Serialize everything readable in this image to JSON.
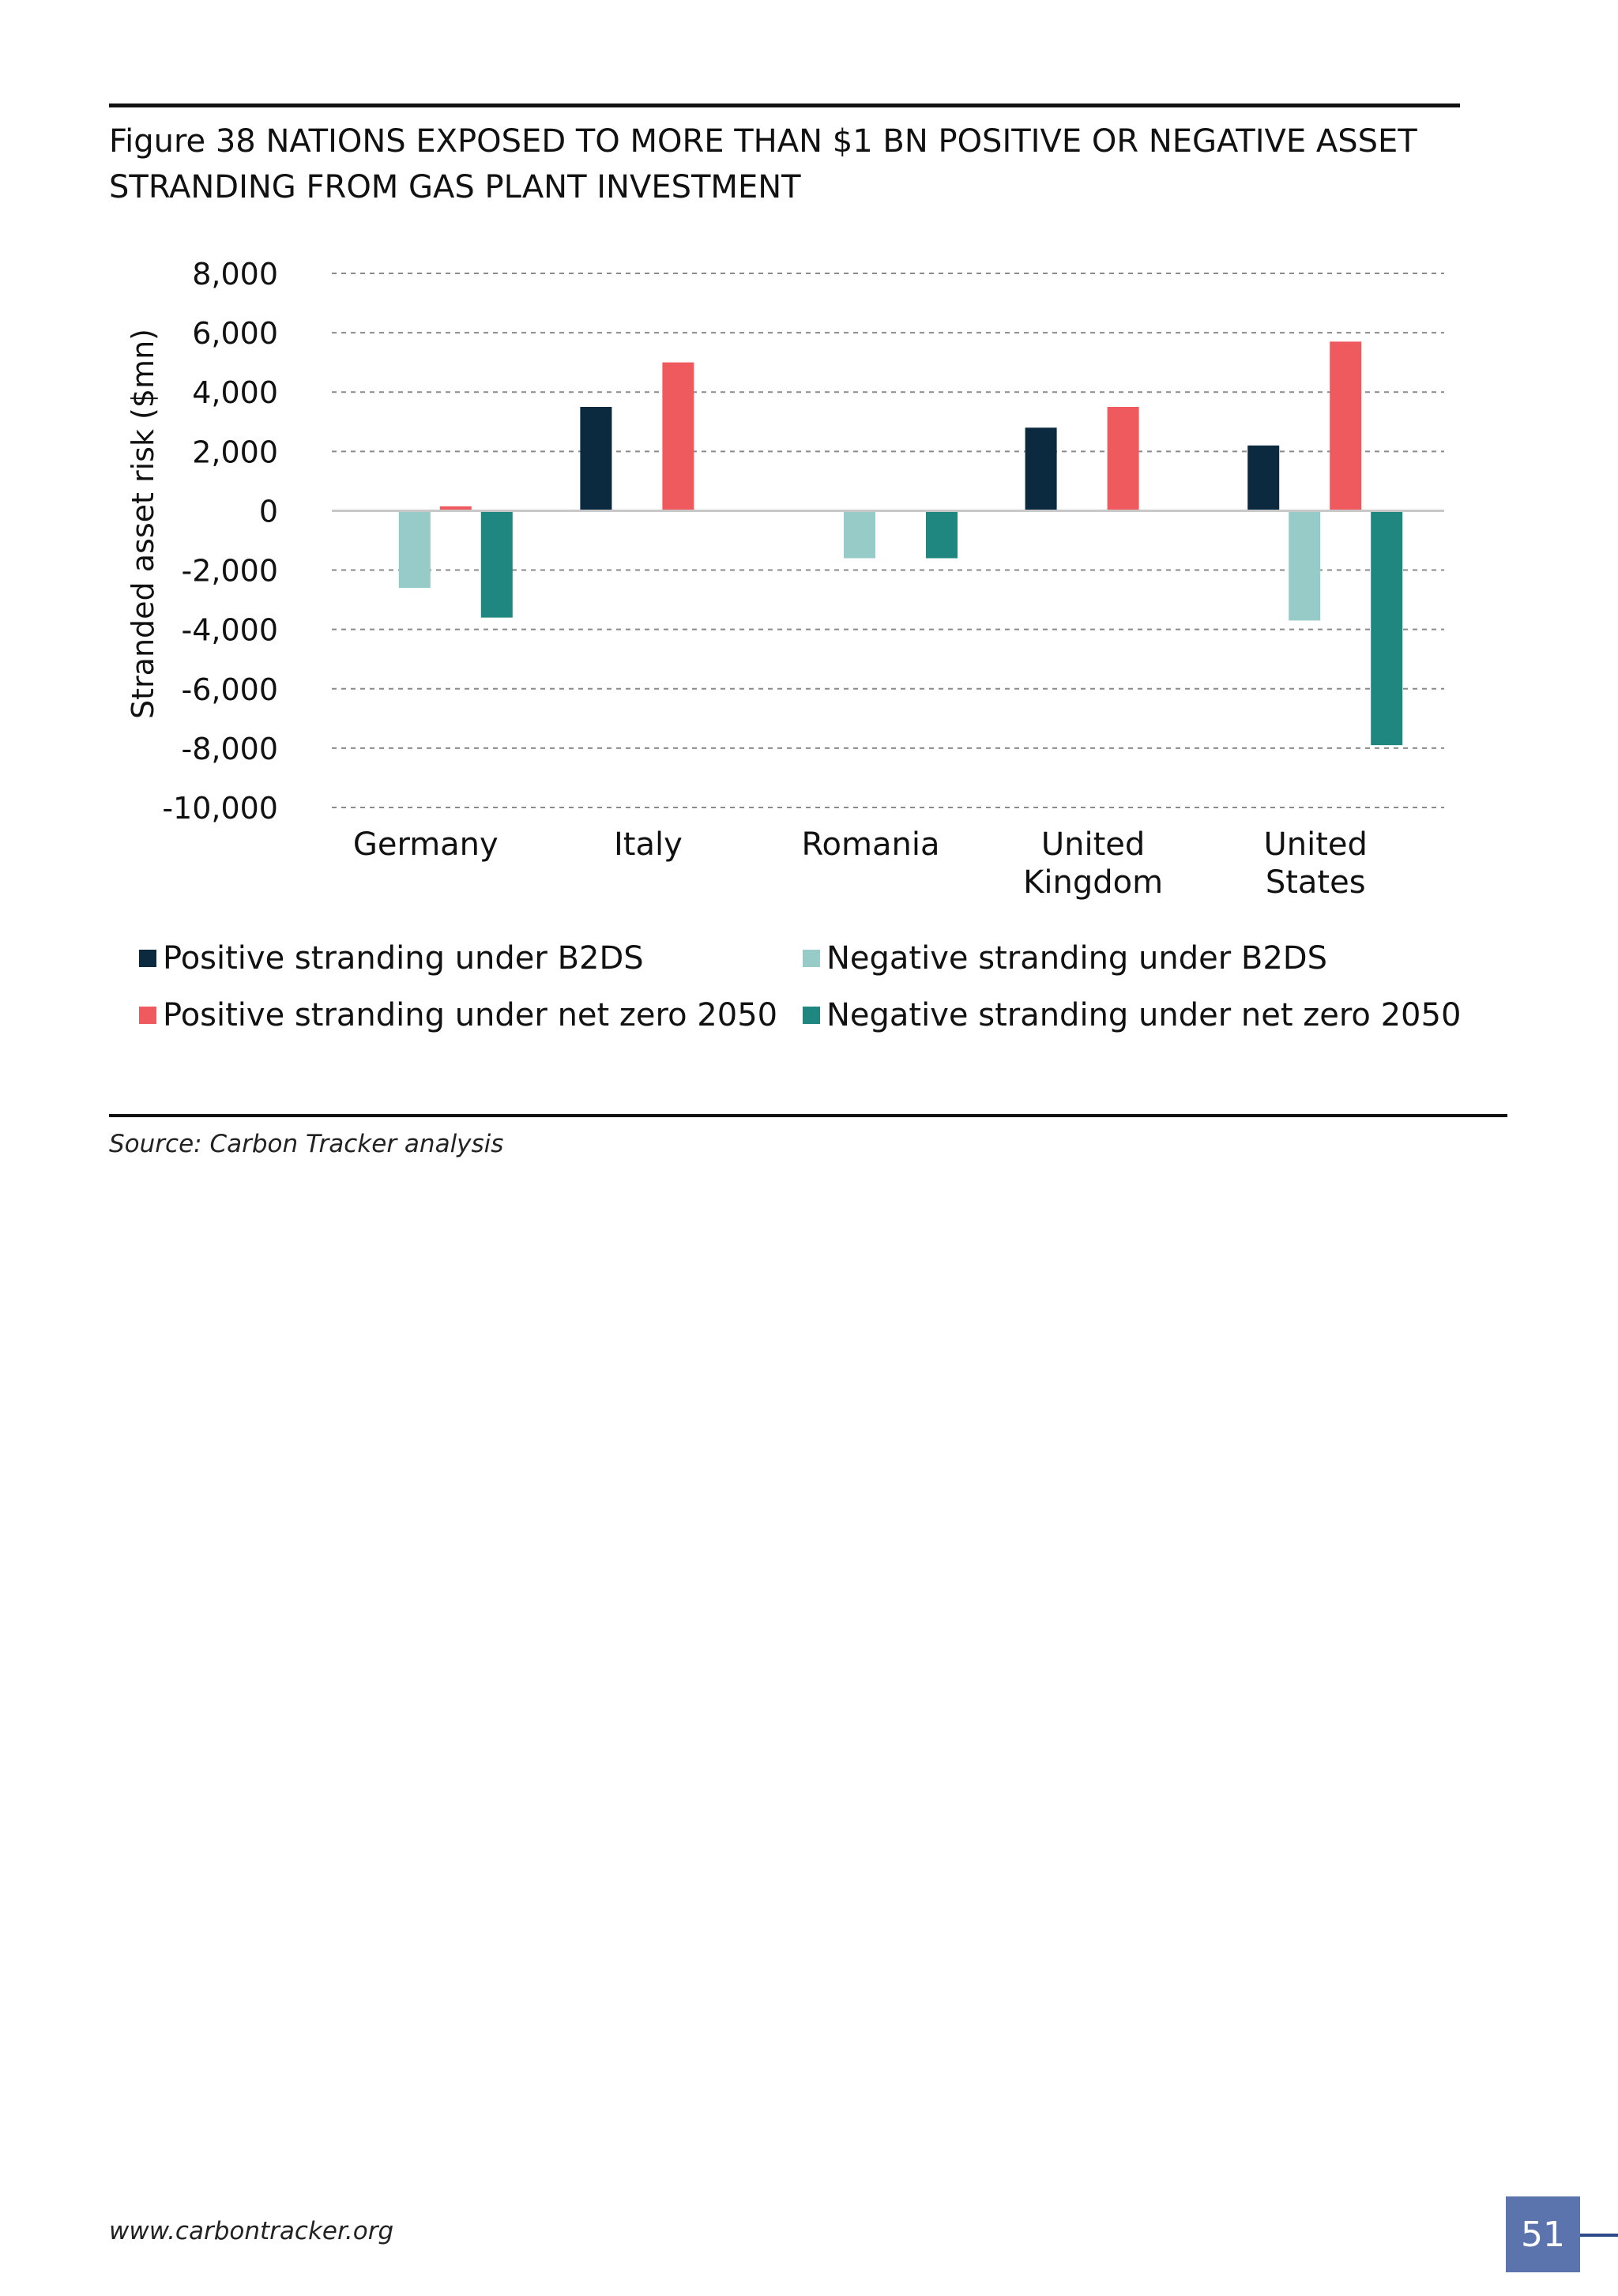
{
  "figure": {
    "title": "Figure 38 NATIONS EXPOSED TO MORE THAN $1 BN POSITIVE OR NEGATIVE ASSET STRANDING FROM GAS PLANT INVESTMENT",
    "source": "Source: Carbon Tracker analysis"
  },
  "footer": {
    "url": "www.carbontracker.org",
    "page_number": "51"
  },
  "chart_data": {
    "type": "bar",
    "title": "",
    "xlabel": "",
    "ylabel": "Stranded asset risk ($mn)",
    "ylim": [
      -10000,
      8000
    ],
    "yticks": [
      8000,
      6000,
      4000,
      2000,
      0,
      -2000,
      -4000,
      -6000,
      -8000,
      -10000
    ],
    "ytick_labels": [
      "8,000",
      "6,000",
      "4,000",
      "2,000",
      "0",
      "-2,000",
      "-4,000",
      "-6,000",
      "-8,000",
      "-10,000"
    ],
    "grid": true,
    "legend_position": "bottom",
    "categories": [
      [
        "Germany"
      ],
      [
        "Italy"
      ],
      [
        "Romania"
      ],
      [
        "United",
        "Kingdom"
      ],
      [
        "United",
        "States"
      ]
    ],
    "series": [
      {
        "name": "Positive stranding under B2DS",
        "color": "#0b2a3f",
        "values": [
          0,
          3500,
          0,
          2800,
          2200
        ]
      },
      {
        "name": "Negative stranding under B2DS",
        "color": "#96cbc8",
        "values": [
          -2600,
          0,
          -1600,
          0,
          -3700
        ]
      },
      {
        "name": "Positive stranding under net zero 2050",
        "color": "#ef5a5f",
        "values": [
          150,
          5000,
          0,
          3500,
          5700
        ]
      },
      {
        "name": "Negative stranding under net zero 2050",
        "color": "#1f8680",
        "values": [
          -3600,
          0,
          -1600,
          0,
          -7900
        ]
      }
    ]
  }
}
